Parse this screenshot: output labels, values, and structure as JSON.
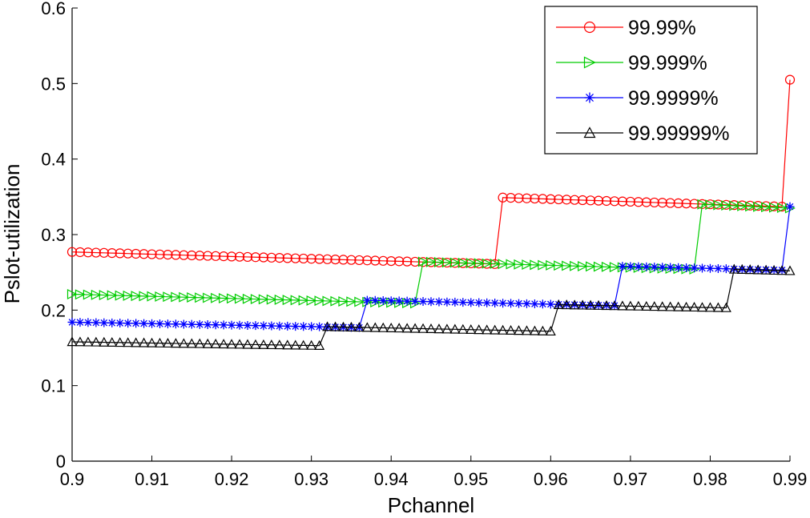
{
  "chart_data": {
    "type": "line",
    "title": "",
    "xlabel": "Pchannel",
    "ylabel": "Pslot-utilization",
    "xlim": [
      0.9,
      0.99
    ],
    "ylim": [
      0,
      0.6
    ],
    "xticks": [
      "0.9",
      "0.91",
      "0.92",
      "0.93",
      "0.94",
      "0.95",
      "0.96",
      "0.97",
      "0.98",
      "0.99"
    ],
    "yticks": [
      "0",
      "0.1",
      "0.2",
      "0.3",
      "0.4",
      "0.5",
      "0.6"
    ],
    "grid": false,
    "legend_position": "top-right",
    "x_step": 0.001,
    "series": [
      {
        "name": "99.99%",
        "color": "#ff0000",
        "marker": "circle",
        "segments": [
          {
            "x_start": 0.9,
            "x_end": 0.953,
            "y_start": 0.277,
            "y_end": 0.261
          },
          {
            "x_start": 0.954,
            "x_end": 0.989,
            "y_start": 0.349,
            "y_end": 0.337
          },
          {
            "x_start": 0.99,
            "x_end": 0.99,
            "y_start": 0.505,
            "y_end": 0.505
          }
        ]
      },
      {
        "name": "99.999%",
        "color": "#00cc00",
        "marker": "triangle-right",
        "segments": [
          {
            "x_start": 0.9,
            "x_end": 0.943,
            "y_start": 0.221,
            "y_end": 0.209
          },
          {
            "x_start": 0.944,
            "x_end": 0.978,
            "y_start": 0.264,
            "y_end": 0.254
          },
          {
            "x_start": 0.979,
            "x_end": 0.99,
            "y_start": 0.34,
            "y_end": 0.335
          }
        ]
      },
      {
        "name": "99.9999%",
        "color": "#0000ff",
        "marker": "star",
        "segments": [
          {
            "x_start": 0.9,
            "x_end": 0.936,
            "y_start": 0.184,
            "y_end": 0.177
          },
          {
            "x_start": 0.937,
            "x_end": 0.968,
            "y_start": 0.213,
            "y_end": 0.206
          },
          {
            "x_start": 0.969,
            "x_end": 0.989,
            "y_start": 0.258,
            "y_end": 0.253
          },
          {
            "x_start": 0.99,
            "x_end": 0.99,
            "y_start": 0.337,
            "y_end": 0.337
          }
        ]
      },
      {
        "name": "99.99999%",
        "color": "#000000",
        "marker": "triangle-up",
        "segments": [
          {
            "x_start": 0.9,
            "x_end": 0.931,
            "y_start": 0.158,
            "y_end": 0.153
          },
          {
            "x_start": 0.932,
            "x_end": 0.96,
            "y_start": 0.178,
            "y_end": 0.172
          },
          {
            "x_start": 0.961,
            "x_end": 0.982,
            "y_start": 0.207,
            "y_end": 0.203
          },
          {
            "x_start": 0.983,
            "x_end": 0.99,
            "y_start": 0.254,
            "y_end": 0.252
          }
        ]
      }
    ]
  }
}
